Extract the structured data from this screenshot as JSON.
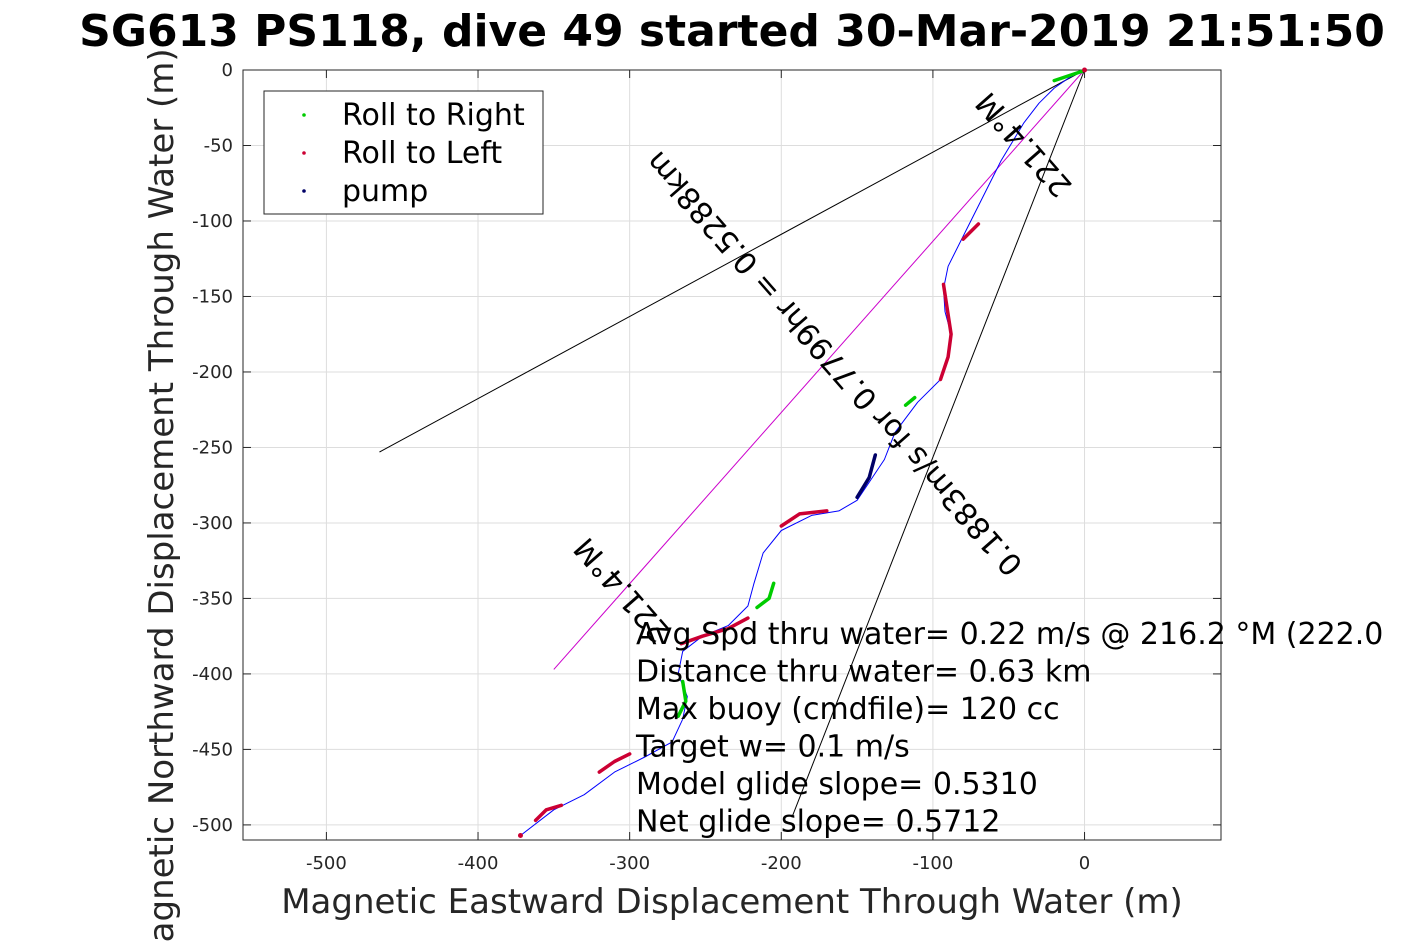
{
  "title": "SG613 PS118, dive 49 started 30-Mar-2019 21:51:50",
  "colors": {
    "roll_right": "#00cc00",
    "roll_left": "#cc0033",
    "pump": "#000066",
    "track": "#0000ff",
    "heading_line": "#cc00cc",
    "axes": "#262626",
    "grid": "#dddddd"
  },
  "chart_data": {
    "type": "line",
    "title": "SG613 PS118, dive 49 started 30-Mar-2019 21:51:50",
    "xlabel": "Magnetic Eastward Displacement Through Water (m)",
    "ylabel": "Magnetic Northward Displacement Through Water (m)",
    "xlim": [
      -555,
      90
    ],
    "ylim": [
      -510,
      0
    ],
    "xticks": [
      -500,
      -400,
      -300,
      -200,
      -100,
      0
    ],
    "yticks": [
      0,
      -50,
      -100,
      -150,
      -200,
      -250,
      -300,
      -350,
      -400,
      -450,
      -500
    ],
    "xtick_labels": [
      "-500",
      "-400",
      "-300",
      "-200",
      "-100",
      "0"
    ],
    "ytick_labels": [
      "0",
      "-50",
      "-100",
      "-150",
      "-200",
      "-250",
      "-300",
      "-350",
      "-400",
      "-450",
      "-500"
    ],
    "grid": true,
    "legend_position": "top-left",
    "legend": [
      {
        "label": "Roll to Right",
        "color": "roll_right"
      },
      {
        "label": "Roll to Left",
        "color": "roll_left"
      },
      {
        "label": "pump",
        "color": "pump"
      }
    ],
    "track": {
      "x": [
        0,
        -10,
        -20,
        -30,
        -40,
        -55,
        -70,
        -80,
        -90,
        -93,
        -92,
        -88,
        -90,
        -95,
        -110,
        -125,
        -132,
        -140,
        -150,
        -162,
        -180,
        -200,
        -212,
        -218,
        -222,
        -235,
        -252,
        -265,
        -268,
        -262,
        -265,
        -272,
        -290,
        -310,
        -330,
        -350,
        -372
      ],
      "y": [
        0,
        -5,
        -12,
        -22,
        -35,
        -60,
        -90,
        -110,
        -130,
        -145,
        -160,
        -175,
        -190,
        -205,
        -220,
        -240,
        -258,
        -270,
        -285,
        -292,
        -295,
        -305,
        -320,
        -340,
        -355,
        -368,
        -375,
        -385,
        -400,
        -415,
        -430,
        -445,
        -455,
        -465,
        -480,
        -490,
        -507
      ]
    },
    "segments": [
      {
        "kind": "roll_right",
        "x": [
          -20,
          -2
        ],
        "y": [
          -7,
          -1
        ]
      },
      {
        "kind": "roll_left",
        "x": [
          -70,
          -80
        ],
        "y": [
          -102,
          -112
        ]
      },
      {
        "kind": "roll_left",
        "x": [
          -93,
          -88,
          -90,
          -95
        ],
        "y": [
          -142,
          -175,
          -190,
          -205
        ]
      },
      {
        "kind": "roll_right",
        "x": [
          -112,
          -118
        ],
        "y": [
          -217,
          -222
        ]
      },
      {
        "kind": "pump",
        "x": [
          -138,
          -142,
          -150
        ],
        "y": [
          -255,
          -270,
          -283
        ]
      },
      {
        "kind": "roll_left",
        "x": [
          -170,
          -188,
          -200
        ],
        "y": [
          -292,
          -294,
          -302
        ]
      },
      {
        "kind": "roll_right",
        "x": [
          -205,
          -208,
          -216
        ],
        "y": [
          -340,
          -350,
          -356
        ]
      },
      {
        "kind": "roll_left",
        "x": [
          -222,
          -235,
          -252,
          -266
        ],
        "y": [
          -363,
          -370,
          -375,
          -380
        ]
      },
      {
        "kind": "roll_right",
        "x": [
          -265,
          -263,
          -268
        ],
        "y": [
          -405,
          -418,
          -428
        ]
      },
      {
        "kind": "roll_left",
        "x": [
          -300,
          -310,
          -320
        ],
        "y": [
          -453,
          -458,
          -465
        ]
      },
      {
        "kind": "roll_left",
        "x": [
          -345,
          -355,
          -362
        ],
        "y": [
          -487,
          -490,
          -497
        ]
      }
    ],
    "reference_lines": [
      {
        "kind": "black",
        "x": [
          0,
          -465
        ],
        "y": [
          0,
          -253
        ]
      },
      {
        "kind": "black",
        "x": [
          0,
          -193
        ],
        "y": [
          0,
          -495
        ]
      },
      {
        "kind": "magenta",
        "x": [
          0,
          -350
        ],
        "y": [
          0,
          -397
        ]
      }
    ],
    "start_marker": {
      "x": 0,
      "y": 0
    },
    "end_marker": {
      "x": -372,
      "y": -507
    },
    "annotations": [
      {
        "text": "221.4°M",
        "anchor_x": -300,
        "anchor_y": -340,
        "rotation": 48.7
      },
      {
        "text": "0.1883m/s for 0.7799hr = 0.5288km",
        "anchor_x": -160,
        "anchor_y": -190,
        "rotation": 48.7
      },
      {
        "text": "221.4°M",
        "anchor_x": -35,
        "anchor_y": -45,
        "rotation": 48.7
      }
    ],
    "info_text": [
      "Avg Spd thru water=  0.22 m/s @ 216.2 °M (222.0",
      "Distance thru water=  0.63 km",
      "Max buoy (cmdfile)= 120 cc",
      "Target w= 0.1 m/s",
      "Model glide slope= 0.5310",
      "Net glide slope= 0.5712"
    ]
  }
}
